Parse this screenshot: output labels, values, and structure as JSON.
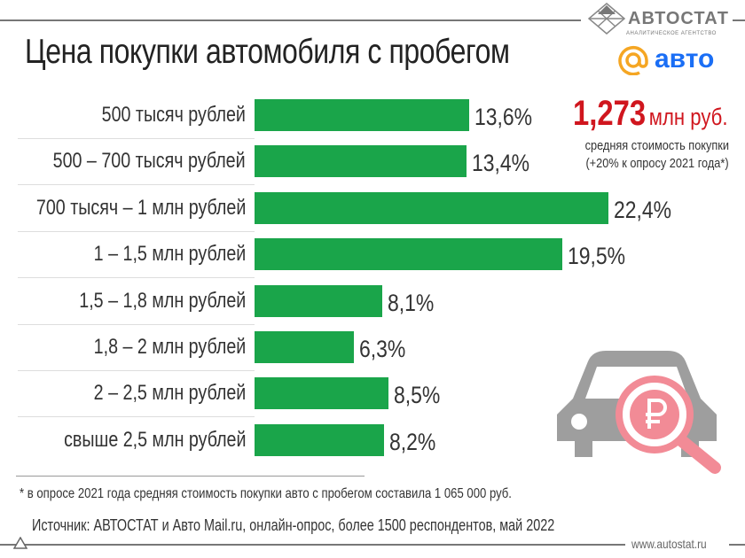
{
  "title": "Цена покупки автомобиля с пробегом",
  "logos": {
    "autostat": "АВТОСТАТ",
    "autostat_sub": "АНАЛИТИЧЕСКОЕ АГЕНТСТВО",
    "mail_avto": "авто"
  },
  "highlight": {
    "value": "1,273",
    "unit": "млн руб.",
    "line1": "средняя стоимость покупки",
    "line2": "(+20% к опросу 2021 года*)",
    "color": "#d0161e"
  },
  "chart_data": {
    "type": "bar",
    "orientation": "horizontal",
    "categories": [
      "500 тысяч рублей",
      "500 – 700 тысяч рублей",
      "700 тысяч – 1 млн рублей",
      "1 – 1,5 млн рублей",
      "1,5 – 1,8 млн рублей",
      "1,8 – 2 млн рублей",
      "2 – 2,5 млн рублей",
      "свыше 2,5 млн рублей"
    ],
    "values": [
      13.6,
      13.4,
      22.4,
      19.5,
      8.1,
      6.3,
      8.5,
      8.2
    ],
    "value_labels": [
      "13,6%",
      "13,4%",
      "22,4%",
      "19,5%",
      "8,1%",
      "6,3%",
      "8,5%",
      "8,2%"
    ],
    "bar_color": "#1aa54a",
    "grid": false
  },
  "footnote": "* в опросе 2021 года средняя стоимость покупки авто с пробегом составила 1 065 000 руб.",
  "source": "Источник: АВТОСТАТ и Авто Mail.ru, онлайн-опрос, более 1500 респондентов, май 2022",
  "website": "www.autostat.ru",
  "icons": [
    "autostat-logo-icon",
    "mail-at-icon",
    "car-ruble-magnifier-icon"
  ]
}
